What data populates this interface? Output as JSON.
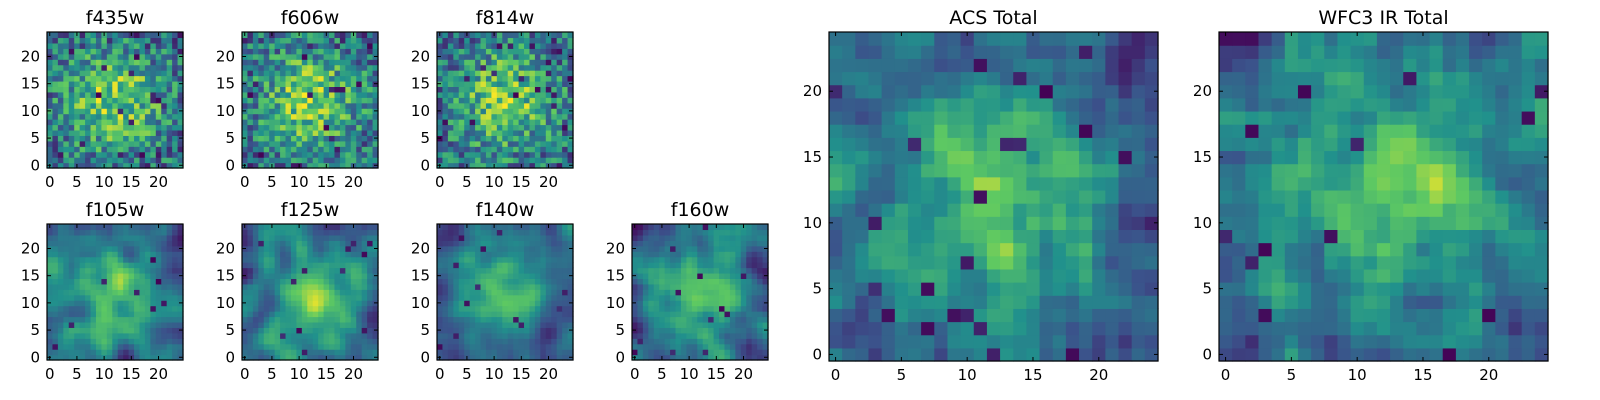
{
  "figure": {
    "background": "#ffffff",
    "colormap": "viridis",
    "colormap_stops": [
      "#440154",
      "#3b528b",
      "#21918c",
      "#5ec962",
      "#fde725"
    ]
  },
  "chart_data": [
    {
      "type": "heatmap",
      "title": "f435w",
      "grid_size": [
        25,
        25
      ],
      "xlim": [
        0,
        24
      ],
      "ylim": [
        0,
        24
      ],
      "xticks": [
        0,
        5,
        10,
        15,
        20
      ],
      "yticks": [
        0,
        5,
        10,
        15,
        20
      ],
      "style": "noisy"
    },
    {
      "type": "heatmap",
      "title": "f606w",
      "grid_size": [
        25,
        25
      ],
      "xlim": [
        0,
        24
      ],
      "ylim": [
        0,
        24
      ],
      "xticks": [
        0,
        5,
        10,
        15,
        20
      ],
      "yticks": [
        0,
        5,
        10,
        15,
        20
      ],
      "style": "noisy"
    },
    {
      "type": "heatmap",
      "title": "f814w",
      "grid_size": [
        25,
        25
      ],
      "xlim": [
        0,
        24
      ],
      "ylim": [
        0,
        24
      ],
      "xticks": [
        0,
        5,
        10,
        15,
        20
      ],
      "yticks": [
        0,
        5,
        10,
        15,
        20
      ],
      "style": "noisy"
    },
    {
      "type": "heatmap",
      "title": "f105w",
      "grid_size": [
        25,
        25
      ],
      "xlim": [
        0,
        24
      ],
      "ylim": [
        0,
        24
      ],
      "xticks": [
        0,
        5,
        10,
        15,
        20
      ],
      "yticks": [
        0,
        5,
        10,
        15,
        20
      ],
      "style": "smooth"
    },
    {
      "type": "heatmap",
      "title": "f125w",
      "grid_size": [
        25,
        25
      ],
      "xlim": [
        0,
        24
      ],
      "ylim": [
        0,
        24
      ],
      "xticks": [
        0,
        5,
        10,
        15,
        20
      ],
      "yticks": [
        0,
        5,
        10,
        15,
        20
      ],
      "style": "smooth"
    },
    {
      "type": "heatmap",
      "title": "f140w",
      "grid_size": [
        25,
        25
      ],
      "xlim": [
        0,
        24
      ],
      "ylim": [
        0,
        24
      ],
      "xticks": [
        0,
        5,
        10,
        15,
        20
      ],
      "yticks": [
        0,
        5,
        10,
        15,
        20
      ],
      "style": "smooth"
    },
    {
      "type": "heatmap",
      "title": "f160w",
      "grid_size": [
        25,
        25
      ],
      "xlim": [
        0,
        24
      ],
      "ylim": [
        0,
        24
      ],
      "xticks": [
        0,
        5,
        10,
        15,
        20
      ],
      "yticks": [
        0,
        5,
        10,
        15,
        20
      ],
      "style": "smooth"
    },
    {
      "type": "heatmap",
      "title": "ACS Total",
      "grid_size": [
        25,
        25
      ],
      "xlim": [
        0,
        24
      ],
      "ylim": [
        0,
        24
      ],
      "xticks": [
        0,
        5,
        10,
        15,
        20
      ],
      "yticks": [
        0,
        5,
        10,
        15,
        20
      ],
      "style": "combined"
    },
    {
      "type": "heatmap",
      "title": "WFC3 IR Total",
      "grid_size": [
        25,
        25
      ],
      "xlim": [
        0,
        24
      ],
      "ylim": [
        0,
        24
      ],
      "xticks": [
        0,
        5,
        10,
        15,
        20
      ],
      "yticks": [
        0,
        5,
        10,
        15,
        20
      ],
      "style": "combined"
    }
  ]
}
